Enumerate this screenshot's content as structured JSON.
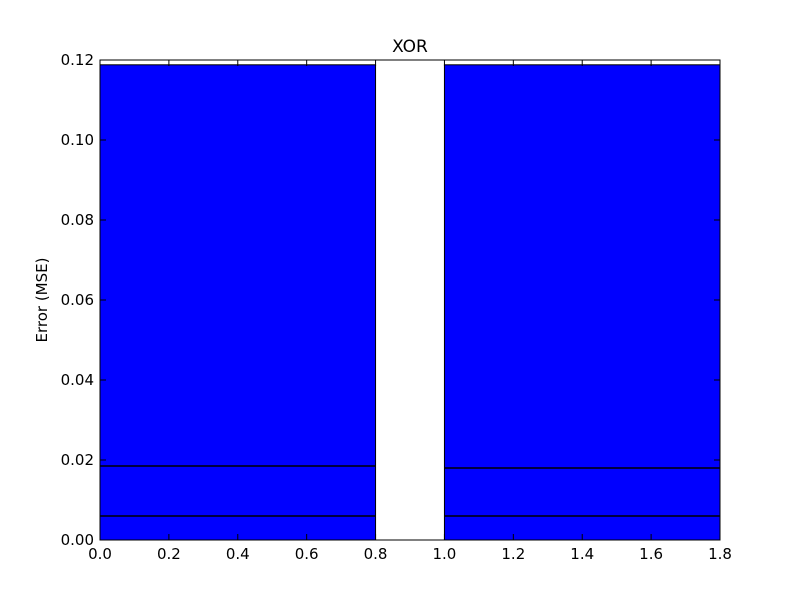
{
  "chart_data": {
    "type": "bar",
    "title": "XOR",
    "xlabel": "",
    "ylabel": "Error (MSE)",
    "xlim": [
      0.0,
      1.8
    ],
    "ylim": [
      0.0,
      0.12
    ],
    "grid": false,
    "bar_color": "#0000ff",
    "bars": [
      {
        "x": 0.0,
        "width": 0.8,
        "height": 0.1188,
        "segment_lines": [
          0.006,
          0.0185
        ]
      },
      {
        "x": 1.0,
        "width": 0.8,
        "height": 0.1188,
        "segment_lines": [
          0.006,
          0.018
        ]
      }
    ],
    "xticks": [
      "0.0",
      "0.2",
      "0.4",
      "0.6",
      "0.8",
      "1.0",
      "1.2",
      "1.4",
      "1.6",
      "1.8"
    ],
    "yticks": [
      "0.00",
      "0.02",
      "0.04",
      "0.06",
      "0.08",
      "0.10",
      "0.12"
    ]
  }
}
